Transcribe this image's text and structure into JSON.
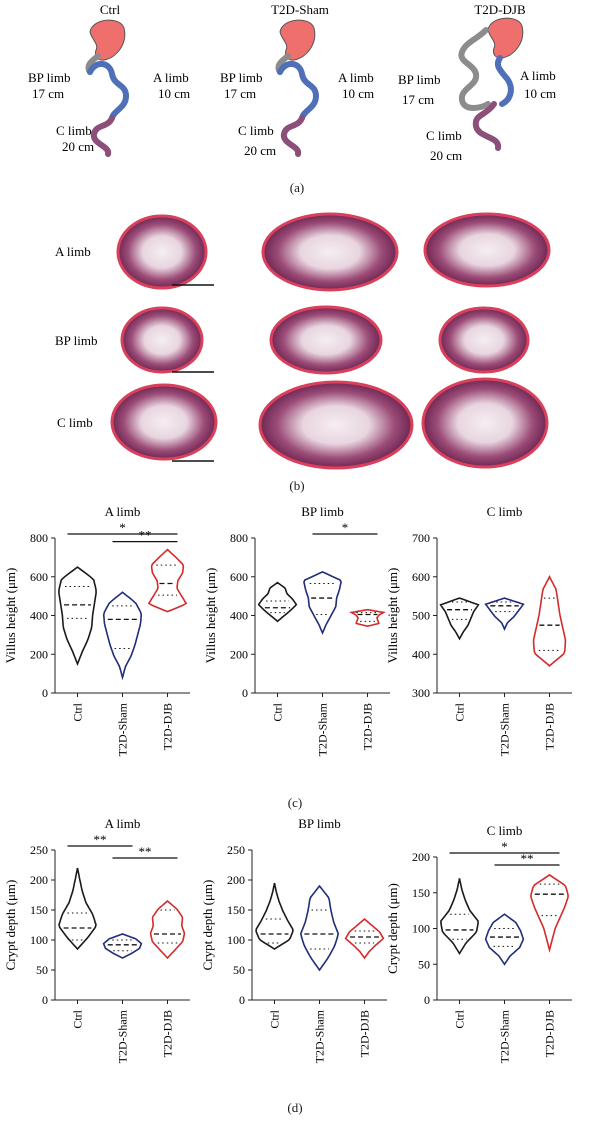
{
  "panel_labels": {
    "a": "(a)",
    "b": "(b)",
    "c": "(c)",
    "d": "(d)"
  },
  "diagrams": [
    {
      "title": "Ctrl",
      "bp_label": "BP limb",
      "bp_len": "17 cm",
      "a_label": "A limb",
      "a_len": "10 cm",
      "c_label": "C limb",
      "c_len": "20 cm"
    },
    {
      "title": "T2D-Sham",
      "bp_label": "BP limb",
      "bp_len": "17 cm",
      "a_label": "A limb",
      "a_len": "10 cm",
      "c_label": "C limb",
      "c_len": "20 cm"
    },
    {
      "title": "T2D-DJB",
      "bp_label": "BP limb",
      "bp_len": "17 cm",
      "a_label": "A limb",
      "a_len": "10 cm",
      "c_label": "C limb",
      "c_len": "20 cm"
    }
  ],
  "histology": {
    "row_labels": [
      "A limb",
      "BP limb",
      "C limb"
    ]
  },
  "colors": {
    "Ctrl": "#1a1a1a",
    "T2D-Sham": "#1f2d7a",
    "T2D-DJB": "#d42a2a",
    "stomach": "#ef6f6c",
    "bp": "#8c8c8c",
    "alimb": "#4f6fb8",
    "climb": "#8c4f7a",
    "tissue": "#7d2f5a",
    "tissue_edge": "#d9405b"
  },
  "chart_data": [
    {
      "type": "violin",
      "panel": "c",
      "title": "A limb",
      "ylabel": "Villus height (μm)",
      "ylim": [
        0,
        800
      ],
      "yticks": [
        0,
        200,
        400,
        600,
        800
      ],
      "categories": [
        "Ctrl",
        "T2D-Sham",
        "T2D-DJB"
      ],
      "series": [
        {
          "name": "Ctrl",
          "min": 150,
          "max": 650,
          "q1": 385,
          "median": 455,
          "q3": 550,
          "profile": [
            0.25,
            0.55,
            0.75,
            0.8,
            0.9,
            1.0,
            0.85
          ]
        },
        {
          "name": "T2D-Sham",
          "min": 80,
          "max": 520,
          "q1": 230,
          "median": 380,
          "q3": 450,
          "profile": [
            0.15,
            0.45,
            0.65,
            0.8,
            0.95,
            1.0,
            0.7
          ]
        },
        {
          "name": "T2D-DJB",
          "min": 420,
          "max": 740,
          "q1": 505,
          "median": 565,
          "q3": 660,
          "profile": [
            1.0,
            0.75,
            0.5,
            0.55,
            0.8,
            0.85,
            0.45
          ]
        }
      ],
      "significance": [
        {
          "from": 0,
          "to": 2,
          "label": "*"
        },
        {
          "from": 1,
          "to": 2,
          "label": "**"
        }
      ]
    },
    {
      "type": "violin",
      "panel": "c",
      "title": "BP limb",
      "ylabel": "Villus height (μm)",
      "ylim": [
        0,
        800
      ],
      "yticks": [
        0,
        200,
        400,
        600,
        800
      ],
      "categories": [
        "Ctrl",
        "T2D-Sham",
        "T2D-DJB"
      ],
      "series": [
        {
          "name": "Ctrl",
          "min": 370,
          "max": 570,
          "q1": 415,
          "median": 440,
          "q3": 475,
          "profile": [
            0.35,
            0.7,
            1.0,
            0.8,
            0.5,
            0.4
          ]
        },
        {
          "name": "T2D-Sham",
          "min": 310,
          "max": 625,
          "q1": 405,
          "median": 490,
          "q3": 565,
          "profile": [
            0.2,
            0.45,
            0.7,
            0.75,
            0.9,
            1.0
          ]
        },
        {
          "name": "T2D-DJB",
          "min": 345,
          "max": 430,
          "q1": 370,
          "median": 405,
          "q3": 415,
          "profile": [
            0.6,
            0.55,
            0.5,
            0.6,
            0.85
          ]
        }
      ],
      "significance": [
        {
          "from": 1,
          "to": 2,
          "label": "*"
        }
      ]
    },
    {
      "type": "violin",
      "panel": "c",
      "title": "C limb",
      "ylabel": "Villus height (μm)",
      "ylim": [
        300,
        700
      ],
      "yticks": [
        300,
        400,
        500,
        600,
        700
      ],
      "categories": [
        "Ctrl",
        "T2D-Sham",
        "T2D-DJB"
      ],
      "series": [
        {
          "name": "Ctrl",
          "min": 440,
          "max": 545,
          "q1": 490,
          "median": 515,
          "q3": 535,
          "profile": [
            0.2,
            0.45,
            0.6,
            0.75,
            1.0
          ]
        },
        {
          "name": "T2D-Sham",
          "min": 465,
          "max": 545,
          "q1": 510,
          "median": 525,
          "q3": 535,
          "profile": [
            0.15,
            0.5,
            0.75,
            1.0
          ]
        },
        {
          "name": "T2D-DJB",
          "min": 370,
          "max": 600,
          "q1": 410,
          "median": 475,
          "q3": 545,
          "profile": [
            0.8,
            0.85,
            0.7,
            0.55,
            0.45,
            0.35
          ]
        }
      ],
      "significance": []
    },
    {
      "type": "violin",
      "panel": "d",
      "title": "A limb",
      "ylabel": "Crypt depth (μm)",
      "ylim": [
        0,
        250
      ],
      "yticks": [
        0,
        50,
        100,
        150,
        200,
        250
      ],
      "categories": [
        "Ctrl",
        "T2D-Sham",
        "T2D-DJB"
      ],
      "series": [
        {
          "name": "Ctrl",
          "min": 85,
          "max": 220,
          "q1": 100,
          "median": 120,
          "q3": 145,
          "profile": [
            0.55,
            1.0,
            0.8,
            0.45,
            0.25,
            0.12
          ]
        },
        {
          "name": "T2D-Sham",
          "min": 70,
          "max": 110,
          "q1": 82,
          "median": 92,
          "q3": 100,
          "profile": [
            0.5,
            0.9,
            1.0,
            0.7
          ]
        },
        {
          "name": "T2D-DJB",
          "min": 70,
          "max": 165,
          "q1": 95,
          "median": 110,
          "q3": 150,
          "profile": [
            0.4,
            0.8,
            0.9,
            0.75,
            0.8,
            0.5
          ]
        }
      ],
      "significance": [
        {
          "from": 0,
          "to": 1,
          "label": "**"
        },
        {
          "from": 1,
          "to": 2,
          "label": "**"
        }
      ]
    },
    {
      "type": "violin",
      "panel": "d",
      "title": "BP limb",
      "ylabel": "Crypt depth (μm)",
      "ylim": [
        0,
        250
      ],
      "yticks": [
        0,
        50,
        100,
        150,
        200,
        250
      ],
      "categories": [
        "Ctrl",
        "T2D-Sham",
        "T2D-DJB"
      ],
      "series": [
        {
          "name": "Ctrl",
          "min": 85,
          "max": 195,
          "q1": 95,
          "median": 110,
          "q3": 135,
          "profile": [
            0.8,
            1.0,
            0.7,
            0.45,
            0.25,
            0.1
          ]
        },
        {
          "name": "T2D-Sham",
          "min": 50,
          "max": 190,
          "q1": 85,
          "median": 110,
          "q3": 150,
          "profile": [
            0.45,
            0.8,
            1.0,
            0.75,
            0.6,
            0.5
          ]
        },
        {
          "name": "T2D-DJB",
          "min": 70,
          "max": 135,
          "q1": 95,
          "median": 105,
          "q3": 115,
          "profile": [
            0.25,
            0.6,
            1.0,
            0.8,
            0.4
          ]
        }
      ],
      "significance": []
    },
    {
      "type": "violin",
      "panel": "d",
      "title": "C limb",
      "ylabel": "Crypt depth (μm)",
      "ylim": [
        0,
        200
      ],
      "yticks": [
        0,
        50,
        100,
        150,
        200
      ],
      "categories": [
        "Ctrl",
        "T2D-Sham",
        "T2D-DJB"
      ],
      "series": [
        {
          "name": "Ctrl",
          "min": 65,
          "max": 170,
          "q1": 85,
          "median": 98,
          "q3": 120,
          "profile": [
            0.35,
            0.9,
            1.0,
            0.55,
            0.3,
            0.12
          ]
        },
        {
          "name": "T2D-Sham",
          "min": 50,
          "max": 120,
          "q1": 75,
          "median": 88,
          "q3": 100,
          "profile": [
            0.3,
            0.8,
            1.0,
            0.85,
            0.6
          ]
        },
        {
          "name": "T2D-DJB",
          "min": 70,
          "max": 175,
          "q1": 118,
          "median": 148,
          "q3": 162,
          "profile": [
            0.15,
            0.3,
            0.55,
            0.8,
            1.0,
            0.85
          ]
        }
      ],
      "significance": [
        {
          "from": 0,
          "to": 2,
          "label": "*"
        },
        {
          "from": 1,
          "to": 2,
          "label": "**"
        }
      ]
    }
  ]
}
